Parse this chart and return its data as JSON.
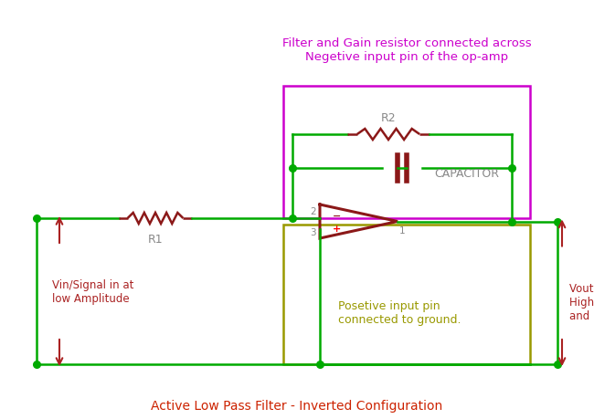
{
  "bg_color": "#ffffff",
  "green": "#00aa00",
  "dark_red": "#8b1818",
  "magenta": "#cc00cc",
  "olive": "#999900",
  "gray": "#888888",
  "red_arrow": "#aa2222",
  "title": "Active Low Pass Filter - Inverted Configuration",
  "top_label": "Filter and Gain resistor connected across\nNegetive input pin of the op-amp",
  "vin_label": "Vin/Signal in at\nlow Amplitude",
  "vout_label": "Vout at\nHigher Amplitude\nand Low frequency",
  "pos_label": "Posetive input pin\nconnected to ground.",
  "r1_label": "R1",
  "r2_label": "R2",
  "cap_label": "CAPACITOR"
}
